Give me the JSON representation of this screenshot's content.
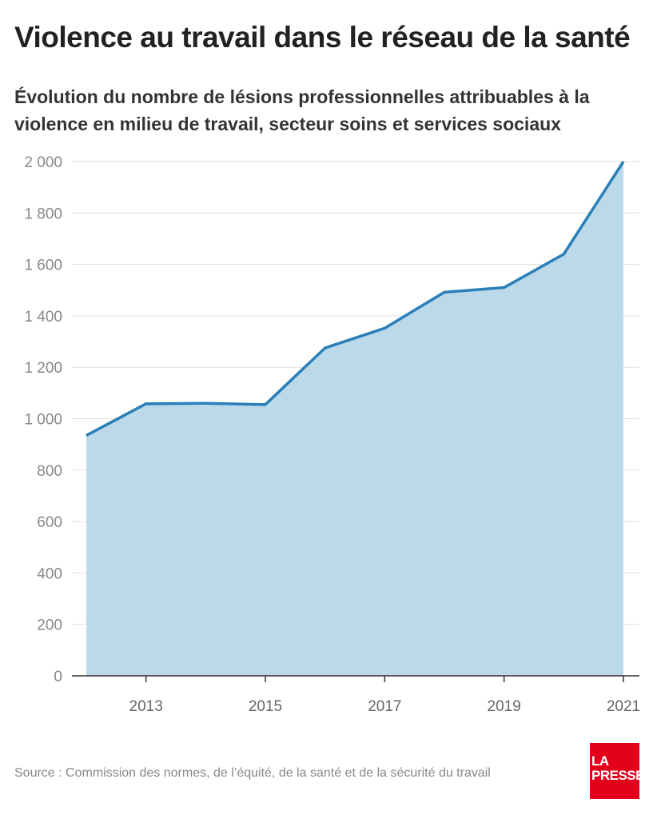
{
  "title": "Violence au travail dans le réseau de la santé",
  "subtitle": "Évolution du nombre de lésions professionnelles attribuables à la violence en milieu de travail, secteur soins et services sociaux",
  "source": "Source : Commission des normes, de l’équité, de la santé et de la sécurité du travail",
  "logo": {
    "line1": "LA",
    "line2": "PRESSE",
    "color": "#e2001a"
  },
  "chart_data": {
    "type": "area",
    "title": "Évolution du nombre de lésions professionnelles attribuables à la violence en milieu de travail, secteur soins et services sociaux",
    "xlabel": "",
    "ylabel": "",
    "x": [
      2012,
      2013,
      2014,
      2015,
      2016,
      2017,
      2018,
      2019,
      2020,
      2021
    ],
    "values": [
      935,
      1058,
      1060,
      1055,
      1275,
      1352,
      1492,
      1510,
      1640,
      2000
    ],
    "xticks": [
      "2013",
      "2015",
      "2017",
      "2019",
      "2021"
    ],
    "yticks": [
      "0",
      "200",
      "400",
      "600",
      "800",
      "1 000",
      "1 200",
      "1 400",
      "1 600",
      "1 800",
      "2 000"
    ],
    "ylim": [
      0,
      2000
    ],
    "xlim": [
      2012,
      2021
    ],
    "grid": true,
    "legend": "none",
    "colors": {
      "line": "#2a7fb8",
      "fill": "#bcd9ea",
      "grid": "#e0e0e0"
    }
  }
}
